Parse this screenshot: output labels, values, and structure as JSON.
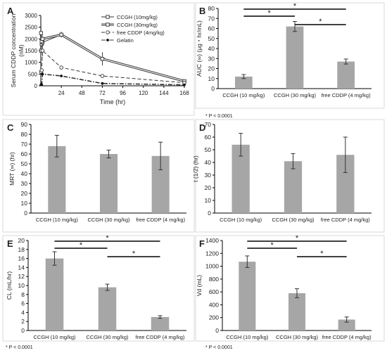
{
  "figure": {
    "colors": {
      "bar": "#a6a6a6",
      "axis": "#000000",
      "text": "#222222",
      "sig": "#000000"
    }
  },
  "chart_data": [
    {
      "panel": "A",
      "type": "line",
      "ylabel_lines": [
        "Serum CDDP concentration",
        "(nM)"
      ],
      "xlabel": "Time (hr)",
      "xticks": [
        24,
        48,
        72,
        96,
        120,
        144,
        168
      ],
      "yticks": [
        0,
        500,
        1000,
        1500,
        2000,
        2500,
        3000
      ],
      "xlim": [
        0,
        168
      ],
      "ylim": [
        0,
        3000
      ],
      "legend_position": "top-right",
      "series": [
        {
          "name": "CCGH (10mg/kg)",
          "marker": "square",
          "line": "solid",
          "x": [
            0.25,
            1,
            2,
            24,
            72,
            168
          ],
          "y": [
            1500,
            1780,
            1850,
            2180,
            1150,
            180
          ],
          "err": [
            200,
            150,
            100,
            120,
            280,
            60
          ]
        },
        {
          "name": "CCGH (30mg/kg)",
          "marker": "square",
          "line": "double",
          "x": [
            0.25,
            1,
            2,
            24,
            72,
            168
          ],
          "y": [
            2250,
            1900,
            2000,
            2180,
            1150,
            200
          ],
          "err": [
            300,
            120,
            100,
            120,
            280,
            60
          ]
        },
        {
          "name": "free CDDP (4mg/kg)",
          "marker": "circle",
          "line": "dashed",
          "x": [
            0.25,
            1,
            2,
            24,
            72,
            168
          ],
          "y": [
            600,
            660,
            1500,
            780,
            420,
            130
          ],
          "err": [
            80,
            60,
            250,
            80,
            60,
            30
          ]
        },
        {
          "name": "Gelatin",
          "marker": "dot",
          "line": "dashdot",
          "x": [
            0.25,
            1,
            2,
            24,
            72,
            168
          ],
          "y": [
            50,
            50,
            500,
            420,
            100,
            40
          ],
          "err": [
            0,
            0,
            60,
            40,
            0,
            0
          ]
        }
      ]
    },
    {
      "panel": "B",
      "type": "bar",
      "ylabel": "AUC (∞) (μg・hr/mL)",
      "categories": [
        "CCGH (10 mg/kg)",
        "CCGH (30 mg/kg)",
        "free CDDP (4 mg/kg)"
      ],
      "values": [
        12,
        62,
        27
      ],
      "err": [
        2,
        5,
        2.5
      ],
      "yticks": [
        0,
        10,
        20,
        30,
        40,
        50,
        60,
        70,
        80
      ],
      "ylim": [
        0,
        80
      ],
      "sig": [
        {
          "from": 0,
          "to": 2,
          "label": "*"
        },
        {
          "from": 0,
          "to": 1,
          "label": "*"
        },
        {
          "from": 1,
          "to": 2,
          "label": "*"
        }
      ],
      "footnote": "* P < 0.0001"
    },
    {
      "panel": "C",
      "type": "bar",
      "ylabel": "MRT (∞) (hr)",
      "categories": [
        "CCGH (10 mg/kg)",
        "CCGH (30 mg/kg)",
        "free CDDP (4 mg/kg)"
      ],
      "values": [
        68,
        60,
        58
      ],
      "err": [
        11,
        4,
        14
      ],
      "yticks": [
        0,
        10,
        20,
        30,
        40,
        50,
        60,
        70,
        80,
        90
      ],
      "ylim": [
        0,
        90
      ],
      "sig": [],
      "footnote": ""
    },
    {
      "panel": "D",
      "type": "bar",
      "ylabel": "t (1/2) (hr)",
      "categories": [
        "CCGH (10 mg/kg)",
        "CCGH (30 mg/kg)",
        "free CDDP (4 mg/kg)"
      ],
      "values": [
        54,
        41,
        46
      ],
      "err": [
        9,
        6,
        14
      ],
      "yticks": [
        0,
        10,
        20,
        30,
        40,
        50,
        60,
        70
      ],
      "ylim": [
        0,
        70
      ],
      "sig": [],
      "footnote": ""
    },
    {
      "panel": "E",
      "type": "bar",
      "ylabel": "CL (mL/hr)",
      "categories": [
        "CCGH (10 mg/kg)",
        "CCGH (30 mg/kg)",
        "free CDDP (4 mg/kg)"
      ],
      "values": [
        16,
        9.6,
        3
      ],
      "err": [
        1.5,
        0.7,
        0.3
      ],
      "yticks": [
        0,
        2,
        4,
        6,
        8,
        10,
        12,
        14,
        16,
        18,
        20
      ],
      "ylim": [
        0,
        20
      ],
      "sig": [
        {
          "from": 0,
          "to": 2,
          "label": "*"
        },
        {
          "from": 0,
          "to": 1,
          "label": "*"
        },
        {
          "from": 1,
          "to": 2,
          "label": "*"
        }
      ],
      "footnote": "* P < 0.0001"
    },
    {
      "panel": "F",
      "type": "bar",
      "ylabel": "Vd (mL)",
      "categories": [
        "CCGH (10 mg/kg)",
        "CCGH (30 mg/kg)",
        "free CDDP (4 mg/kg)"
      ],
      "values": [
        1070,
        580,
        170
      ],
      "err": [
        90,
        70,
        40
      ],
      "yticks": [
        0,
        200,
        400,
        600,
        800,
        1000,
        1200,
        1400
      ],
      "ylim": [
        0,
        1400
      ],
      "sig": [
        {
          "from": 0,
          "to": 2,
          "label": "*"
        },
        {
          "from": 0,
          "to": 1,
          "label": "*"
        },
        {
          "from": 1,
          "to": 2,
          "label": "*"
        }
      ],
      "footnote": "* P < 0.0001"
    }
  ]
}
